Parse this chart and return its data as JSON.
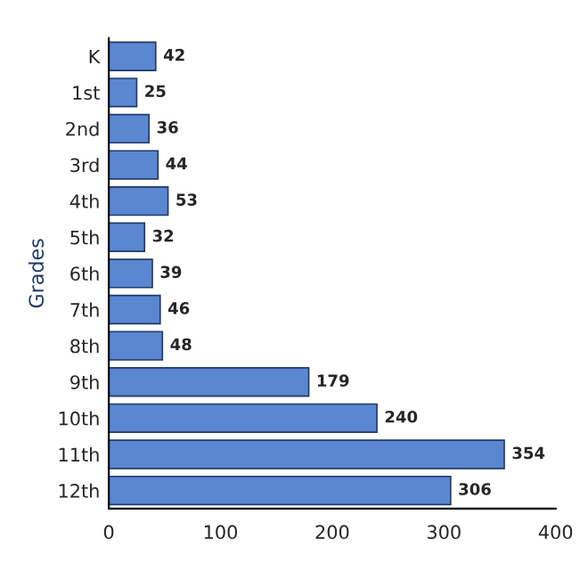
{
  "chart_data": {
    "type": "bar",
    "orientation": "horizontal",
    "ylabel": "Grades",
    "categories": [
      "K",
      "1st",
      "2nd",
      "3rd",
      "4th",
      "5th",
      "6th",
      "7th",
      "8th",
      "9th",
      "10th",
      "11th",
      "12th"
    ],
    "values": [
      42,
      25,
      36,
      44,
      53,
      32,
      39,
      46,
      48,
      179,
      240,
      354,
      306
    ],
    "color": "#5b87d0",
    "xlim": [
      0,
      400
    ],
    "xticks": [
      0,
      100,
      200,
      300,
      400
    ],
    "data_labels": true,
    "grid": false,
    "legend": false
  }
}
